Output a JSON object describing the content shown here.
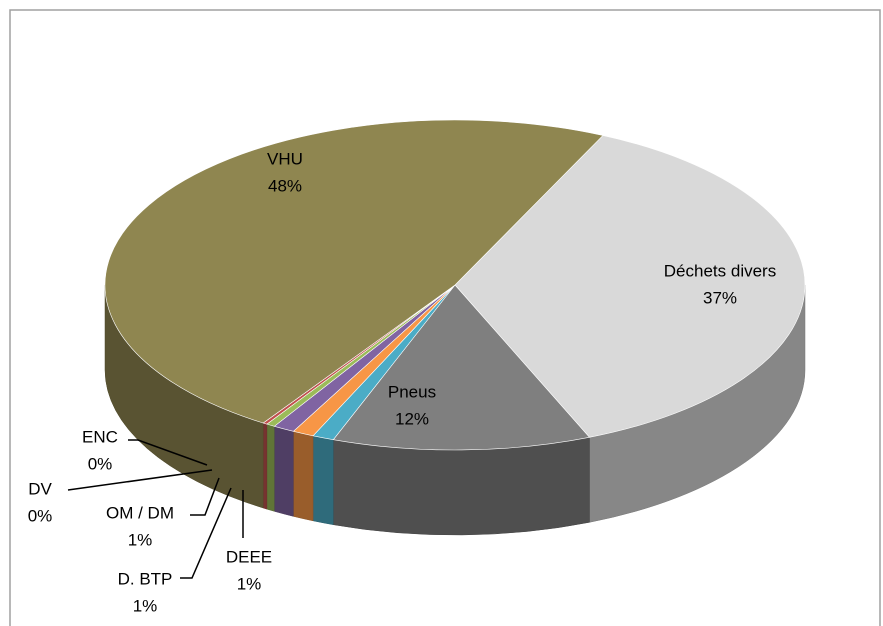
{
  "chart_data": {
    "type": "pie",
    "categories": [
      "Déchets divers",
      "Pneus",
      "DEEE",
      "D. BTP",
      "OM / DM",
      "DV",
      "ENC",
      "VHU"
    ],
    "values": [
      37,
      12,
      1,
      1,
      1,
      0.4,
      0.2,
      48
    ],
    "value_labels": [
      "37%",
      "12%",
      "1%",
      "1%",
      "1%",
      "0%",
      "0%",
      "48%"
    ],
    "colors": [
      "#d9d9d9",
      "#7f7f7f",
      "#4bacc6",
      "#f79646",
      "#8064a2",
      "#9bbb59",
      "#c0504d",
      "#8f8650"
    ]
  }
}
